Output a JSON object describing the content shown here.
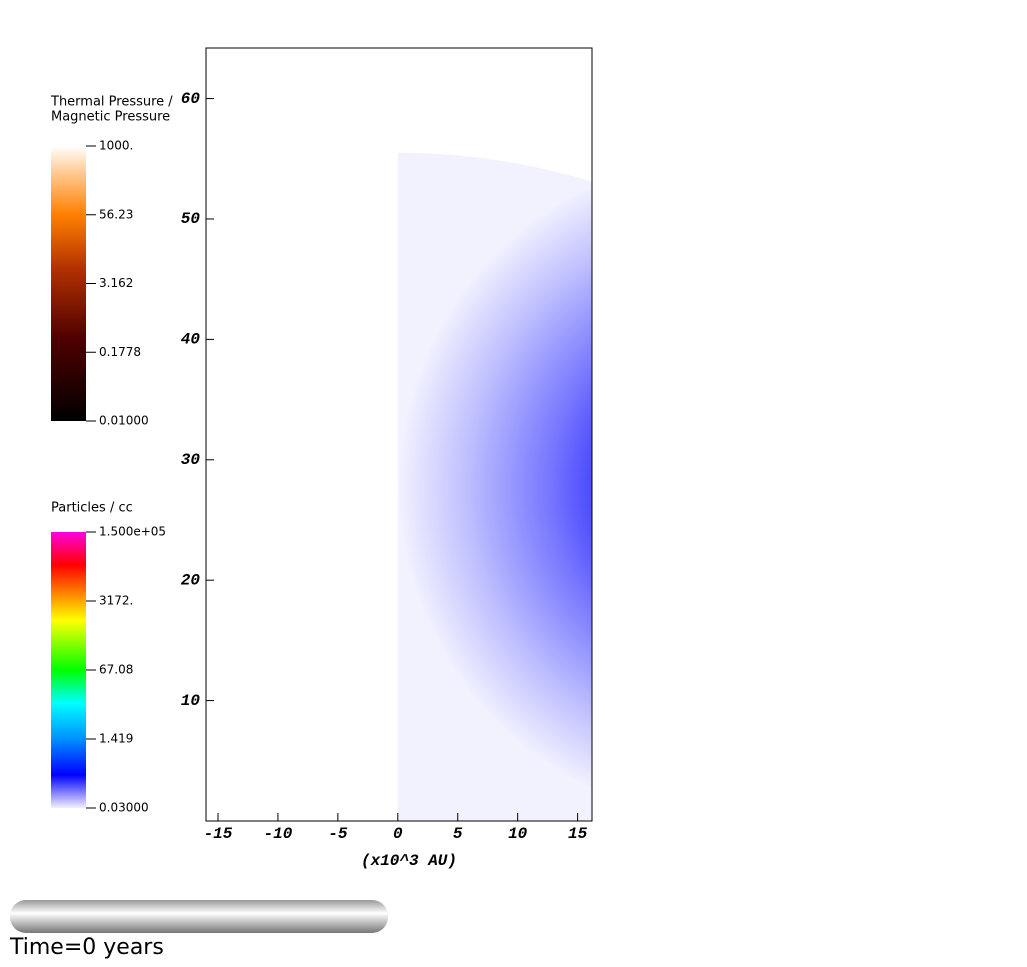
{
  "chart_data": {
    "type": "field",
    "xlabel": "(x10^3 AU)",
    "xlim": [
      -16,
      16.2
    ],
    "ylim": [
      0,
      64.2
    ],
    "xticks": [
      -15,
      -10,
      -5,
      0,
      5,
      10,
      15
    ],
    "yticks": [
      10,
      20,
      30,
      40,
      50,
      60
    ],
    "radius": 55.5,
    "colorbars": [
      {
        "title": [
          "Thermal Pressure /",
          "Magnetic Pressure"
        ],
        "log": true,
        "lim": [
          0.01,
          1000
        ],
        "ticks": [
          {
            "value": 1000,
            "label": "1000."
          },
          56.23,
          3.162,
          0.1778,
          {
            "value": 0.01,
            "label": "0.01000"
          }
        ]
      },
      {
        "title": [
          "Particles / cc"
        ],
        "log": true,
        "lim": [
          0.03,
          150000
        ],
        "ticks": [
          {
            "value": 150000,
            "label": "1.500e+05"
          },
          {
            "value": 3172,
            "label": "3172."
          },
          67.08,
          1.419,
          {
            "value": 0.03,
            "label": "0.03000"
          }
        ]
      }
    ],
    "time_label": "Time=0 years"
  }
}
